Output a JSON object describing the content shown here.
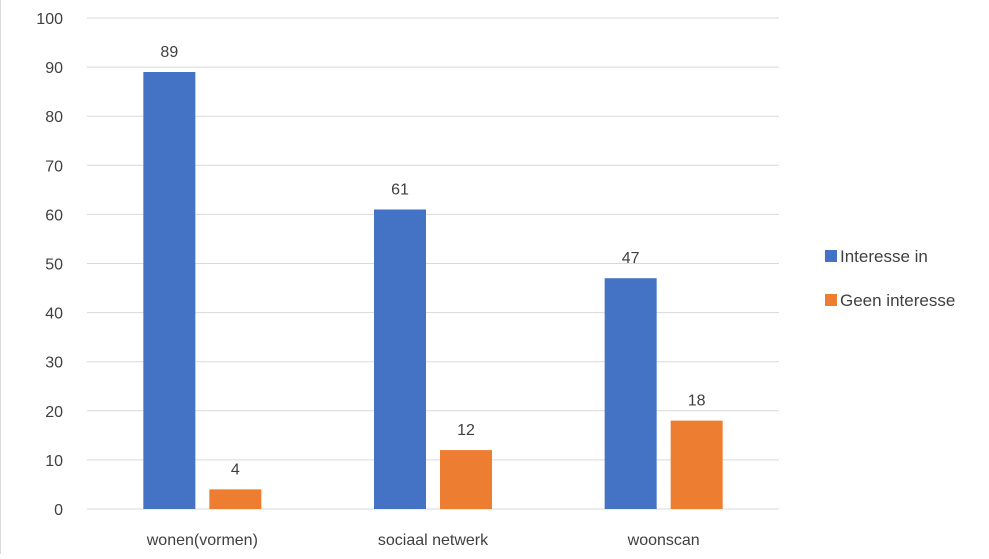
{
  "chart_data": {
    "type": "bar",
    "title": "",
    "xlabel": "",
    "ylabel": "",
    "categories": [
      "wonen(vormen)",
      "sociaal netwerk",
      "woonscan"
    ],
    "series": [
      {
        "name": "Interesse in",
        "values": [
          89,
          61,
          47
        ],
        "color": "#4472C4"
      },
      {
        "name": "Geen interesse",
        "values": [
          4,
          12,
          18
        ],
        "color": "#ED7D31"
      }
    ],
    "ylim": [
      0,
      100
    ],
    "yticks": [
      0,
      10,
      20,
      30,
      40,
      50,
      60,
      70,
      80,
      90,
      100
    ],
    "grid": true,
    "legend_position": "right",
    "data_labels": true
  }
}
